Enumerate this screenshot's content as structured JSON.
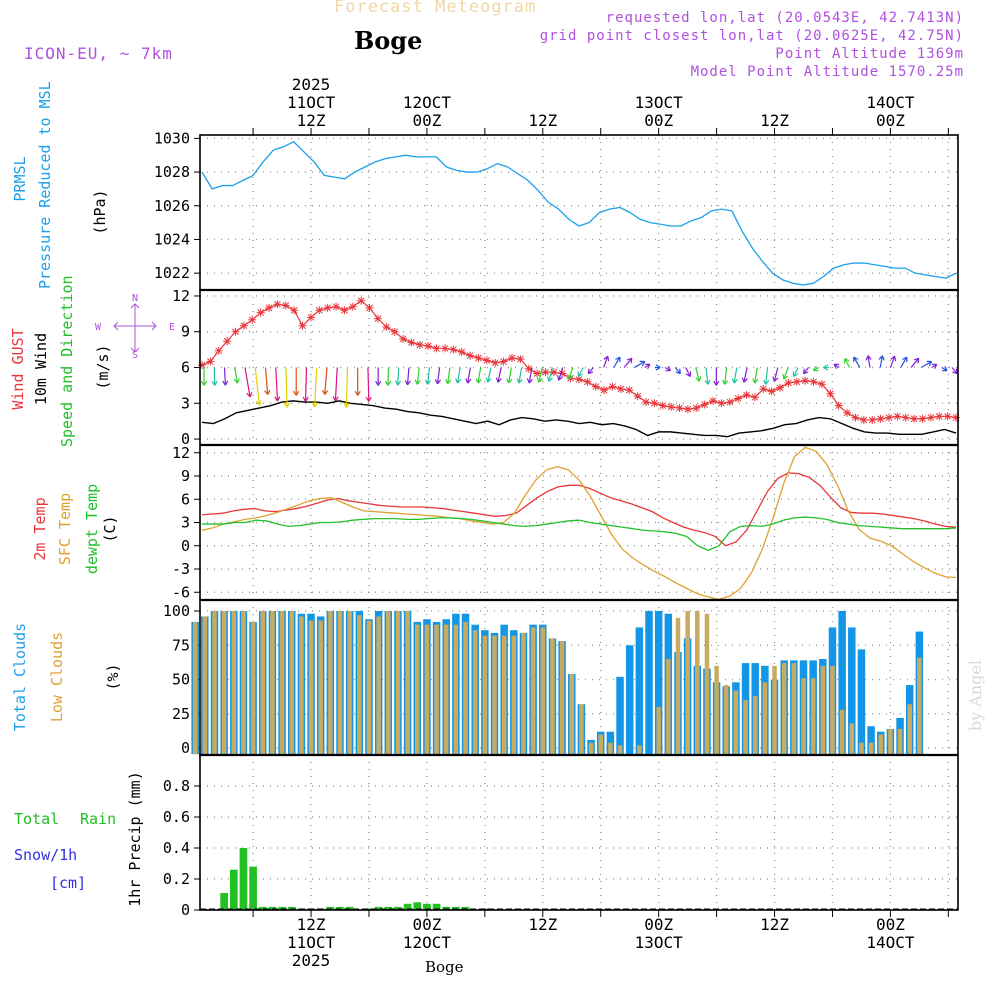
{
  "header": {
    "title": "Forecast Meteogram",
    "place": "Boge",
    "model": "ICON-EU, ~ 7km",
    "requested": "requested lon,lat (20.0543E, 42.7413N)",
    "gridpoint": "grid point closest lon,lat (20.0625E, 42.75N)",
    "point_altitude": "Point Altitude 1369m",
    "model_altitude": "Model Point Altitude 1570.25m",
    "credit": "by Angel",
    "footer_place": "Boge"
  },
  "colors": {
    "pressure": "#1aa0ea",
    "gust": "#e8363a",
    "wind": "#000000",
    "temp2m": "#e8363a",
    "sfc": "#e0a030",
    "dewpt": "#22c02a",
    "total_clouds": "#1496e6",
    "low_clouds": "#c8aa60",
    "rain": "#22c022",
    "snow": "#3030e0",
    "purple": "#b050e0"
  },
  "panel_labels": {
    "pressure": [
      "PRMSL",
      "Pressure Reduced to MSL",
      "(hPa)"
    ],
    "wind": [
      "Wind GUST",
      "10m Wind",
      "Speed and Direction",
      "(m/s)"
    ],
    "temp": [
      "2m Temp",
      "SFC Temp",
      "dewpt Temp",
      "(C)"
    ],
    "clouds": [
      "Total Clouds",
      "Low Clouds",
      "(%)"
    ],
    "precip": [
      "Total",
      "Rain",
      "Snow/1h",
      "[cm]",
      "1hr Precip (mm)"
    ],
    "compass": [
      "N",
      "E",
      "S",
      "W"
    ]
  },
  "chart_data": {
    "type": "line",
    "time_axis": {
      "start": "2025-10-11 00Z",
      "hours": 79,
      "step_h": 1,
      "top_ticks": [
        {
          "h": 12,
          "lines": [
            "2025",
            "11OCT",
            "12Z"
          ]
        },
        {
          "h": 24,
          "lines": [
            "12OCT",
            "00Z"
          ]
        },
        {
          "h": 36,
          "lines": [
            "12Z"
          ]
        },
        {
          "h": 48,
          "lines": [
            "13OCT",
            "00Z"
          ]
        },
        {
          "h": 60,
          "lines": [
            "12Z"
          ]
        },
        {
          "h": 72,
          "lines": [
            "14OCT",
            "00Z"
          ]
        }
      ],
      "bottom_ticks": [
        {
          "h": 12,
          "lines": [
            "12Z",
            "11OCT",
            "2025"
          ]
        },
        {
          "h": 24,
          "lines": [
            "00Z",
            "12OCT"
          ]
        },
        {
          "h": 36,
          "lines": [
            "12Z"
          ]
        },
        {
          "h": 48,
          "lines": [
            "00Z",
            "13OCT"
          ]
        },
        {
          "h": 60,
          "lines": [
            "12Z"
          ]
        },
        {
          "h": 72,
          "lines": [
            "00Z",
            "14OCT"
          ]
        }
      ]
    },
    "panels": [
      {
        "id": "pressure",
        "ylim": [
          1021,
          1030.2
        ],
        "yticks": [
          1022,
          1024,
          1026,
          1028,
          1030
        ],
        "series": [
          {
            "name": "PRMSL",
            "values": [
              1028,
              1027,
              1027.2,
              1027.2,
              1027.5,
              1027.8,
              1028.6,
              1029.3,
              1029.5,
              1029.8,
              1029.2,
              1028.6,
              1027.8,
              1027.7,
              1027.6,
              1028,
              1028.3,
              1028.6,
              1028.8,
              1028.9,
              1029,
              1028.9,
              1028.9,
              1028.9,
              1028.3,
              1028.1,
              1028,
              1028,
              1028.2,
              1028.5,
              1028.3,
              1027.9,
              1027.5,
              1026.9,
              1026.2,
              1025.8,
              1025.2,
              1024.8,
              1025,
              1025.6,
              1025.8,
              1025.9,
              1025.6,
              1025.2,
              1025,
              1024.9,
              1024.8,
              1024.8,
              1025.1,
              1025.3,
              1025.7,
              1025.8,
              1025.7,
              1024.5,
              1023.5,
              1022.7,
              1022,
              1021.6,
              1021.4,
              1021.3,
              1021.4,
              1021.8,
              1022.3,
              1022.5,
              1022.6,
              1022.6,
              1022.5,
              1022.4,
              1022.3,
              1022.3,
              1022,
              1021.9,
              1021.8,
              1021.7,
              1022
            ]
          }
        ]
      },
      {
        "id": "wind",
        "ylim": [
          -0.5,
          12.5
        ],
        "yticks": [
          0,
          3,
          6,
          9,
          12
        ],
        "series": [
          {
            "name": "Wind GUST",
            "values": [
              6.2,
              6.5,
              7.4,
              8.2,
              9,
              9.5,
              10,
              10.6,
              11,
              11.3,
              11.2,
              10.8,
              9.5,
              10.2,
              10.8,
              11,
              11.1,
              10.8,
              11.1,
              11.6,
              11,
              10.1,
              9.4,
              9,
              8.4,
              8.1,
              7.9,
              7.8,
              7.6,
              7.6,
              7.5,
              7.3,
              7,
              6.8,
              6.6,
              6.4,
              6.5,
              6.8,
              6.7,
              5.9,
              5.5,
              5.6,
              5.6,
              5.5,
              5.1,
              5,
              4.8,
              4.4,
              4.1,
              4.4,
              4.2,
              4.1,
              3.6,
              3.1,
              3,
              2.8,
              2.7,
              2.6,
              2.5,
              2.6,
              2.9,
              3.2,
              3,
              3.1,
              3.4,
              3.7,
              3.5,
              4.2,
              4,
              4.3,
              4.7,
              4.8,
              4.9,
              4.8,
              4.6,
              3.8,
              2.8,
              2.2,
              1.8,
              1.6,
              1.6,
              1.7,
              1.8,
              1.9,
              1.8,
              1.7,
              1.7,
              1.8,
              1.9,
              1.9,
              1.8
            ]
          },
          {
            "name": "10m Wind",
            "values": [
              1.4,
              1.3,
              1.7,
              2.2,
              2.4,
              2.6,
              2.8,
              3.1,
              3.2,
              3.1,
              3.1,
              3,
              3.2,
              3,
              2.9,
              2.8,
              2.6,
              2.5,
              2.3,
              2.2,
              2,
              1.9,
              1.7,
              1.5,
              1.3,
              1.5,
              1.2,
              1.6,
              1.8,
              1.7,
              1.5,
              1.6,
              1.5,
              1.3,
              1.4,
              1.2,
              1.3,
              1.1,
              0.8,
              0.3,
              0.6,
              0.6,
              0.5,
              0.4,
              0.3,
              0.3,
              0.2,
              0.5,
              0.6,
              0.7,
              0.9,
              1.2,
              1.3,
              1.6,
              1.8,
              1.7,
              1.3,
              0.9,
              0.6,
              0.5,
              0.5,
              0.4,
              0.4,
              0.4,
              0.6,
              0.8,
              0.5
            ]
          },
          {
            "name": "Direction arrows (deg toward)",
            "values": [
              180,
              175,
              170,
              150,
              150,
              160,
              165,
              170,
              175,
              180,
              185,
              190,
              195,
              190,
              185,
              180,
              175,
              180,
              185,
              190,
              195,
              200,
              200,
              205,
              205,
              210,
              210,
              210,
              215,
              215,
              210,
              210,
              210,
              215,
              220,
              225,
              230,
              240,
              250,
              20,
              30,
              40,
              60,
              80,
              90,
              100,
              110,
              120,
              140,
              160,
              180,
              200,
              210,
              215,
              210,
              200,
              220,
              230,
              240,
              250,
              260,
              270,
              280,
              300,
              330,
              350,
              10,
              20,
              30,
              40,
              60,
              80,
              100,
              110
            ]
          }
        ]
      },
      {
        "id": "temp",
        "ylim": [
          -7,
          13
        ],
        "yticks": [
          -6,
          -3,
          0,
          3,
          6,
          9,
          12
        ],
        "series": [
          {
            "name": "2m Temp",
            "values": [
              4,
              4.1,
              4.2,
              4.5,
              4.7,
              4.8,
              4.5,
              4.4,
              4.6,
              4.8,
              5.1,
              5.5,
              5.9,
              6.1,
              5.8,
              5.6,
              5.4,
              5.2,
              5.1,
              5,
              5,
              5,
              4.9,
              4.8,
              4.6,
              4.4,
              4.2,
              4,
              3.8,
              3.9,
              4.2,
              5.2,
              6.2,
              7,
              7.6,
              7.8,
              7.8,
              7.4,
              6.8,
              6.2,
              5.8,
              5.4,
              4.9,
              4.4,
              3.6,
              3,
              2.4,
              2,
              1.7,
              1.2,
              0,
              0.5,
              2,
              4.5,
              7,
              8.7,
              9.4,
              9.3,
              8.8,
              7.8,
              6.3,
              4.9,
              4.3,
              4.2,
              4.2,
              4.1,
              3.9,
              3.7,
              3.5,
              3.2,
              2.8,
              2.5,
              2.4
            ]
          },
          {
            "name": "SFC Temp",
            "values": [
              2,
              2.3,
              2.8,
              3.1,
              3.4,
              3.6,
              3.9,
              4.3,
              4.8,
              5.3,
              5.8,
              6.1,
              6.2,
              5.6,
              5,
              4.5,
              4.4,
              4.3,
              4.2,
              4.1,
              4,
              3.9,
              3.8,
              3.6,
              3.5,
              3.2,
              3,
              2.8,
              3,
              4.2,
              6.5,
              8.5,
              9.8,
              10.2,
              9.8,
              8.5,
              6.5,
              4,
              1.5,
              -0.4,
              -1.6,
              -2.5,
              -3.3,
              -4,
              -4.8,
              -5.5,
              -6.2,
              -6.6,
              -6.9,
              -6.5,
              -5.5,
              -3.5,
              -0.5,
              3.5,
              8,
              11.5,
              12.7,
              12.2,
              10.5,
              7.8,
              4.5,
              2.1,
              1,
              0.6,
              0,
              -1,
              -2,
              -2.8,
              -3.5,
              -4,
              -4.1
            ]
          },
          {
            "name": "dewpt Temp",
            "values": [
              2.8,
              2.8,
              2.8,
              3,
              3,
              3.3,
              3.2,
              2.8,
              2.5,
              2.6,
              2.8,
              3,
              3,
              3.1,
              3.3,
              3.4,
              3.5,
              3.5,
              3.5,
              3.4,
              3.4,
              3.5,
              3.6,
              3.6,
              3.5,
              3.4,
              3.2,
              3,
              2.8,
              2.6,
              2.5,
              2.6,
              2.8,
              3,
              3.2,
              3.3,
              3,
              2.8,
              2.6,
              2.4,
              2.2,
              2,
              1.9,
              1.8,
              1.6,
              1.2,
              0,
              -0.6,
              0,
              1.8,
              2.5,
              2.6,
              2.5,
              2.8,
              3.3,
              3.6,
              3.7,
              3.6,
              3.4,
              3,
              2.8,
              2.6,
              2.5,
              2.4,
              2.3,
              2.2,
              2.2,
              2.2,
              2.2,
              2.2,
              2.3
            ]
          }
        ]
      },
      {
        "id": "clouds",
        "ylim": [
          -5,
          108
        ],
        "yticks": [
          0,
          25,
          50,
          75,
          100
        ],
        "series": [
          {
            "name": "Total Clouds",
            "values": [
              92,
              96,
              100,
              100,
              100,
              100,
              92,
              100,
              100,
              100,
              100,
              98,
              98,
              96,
              100,
              100,
              100,
              100,
              94,
              100,
              100,
              100,
              100,
              92,
              94,
              92,
              94,
              98,
              98,
              90,
              86,
              84,
              90,
              86,
              84,
              90,
              90,
              80,
              78,
              54,
              32,
              6,
              12,
              12,
              52,
              75,
              88,
              100,
              100,
              98,
              70,
              80,
              60,
              58,
              48,
              45,
              48,
              62,
              62,
              60,
              50,
              64,
              64,
              64,
              64,
              65,
              88,
              100,
              88,
              72,
              16,
              12,
              14,
              22,
              46,
              85
            ]
          },
          {
            "name": "Low Clouds",
            "values": [
              92,
              96,
              100,
              100,
              100,
              100,
              92,
              100,
              100,
              100,
              100,
              96,
              93,
              93,
              100,
              100,
              100,
              97,
              93,
              96,
              100,
              100,
              100,
              90,
              90,
              90,
              90,
              90,
              92,
              86,
              82,
              82,
              82,
              82,
              84,
              88,
              88,
              80,
              78,
              54,
              32,
              4,
              10,
              4,
              2,
              0,
              2,
              0,
              30,
              65,
              95,
              100,
              100,
              98,
              60,
              46,
              42,
              35,
              38,
              48,
              60,
              62,
              62,
              51,
              51,
              60,
              60,
              28,
              18,
              4,
              4,
              10,
              14,
              14,
              32,
              66
            ]
          }
        ]
      },
      {
        "id": "precip",
        "ylim": [
          0,
          1.0
        ],
        "yticks": [
          0,
          0.2,
          0.4,
          0.6,
          0.8
        ],
        "series": [
          {
            "name": "Total Rain",
            "values": [
              0,
              0,
              0,
              0.11,
              0.26,
              0.4,
              0.28,
              0.02,
              0.02,
              0.02,
              0.02,
              0.01,
              0.01,
              0.01,
              0.02,
              0.02,
              0.02,
              0,
              0.01,
              0.02,
              0.02,
              0.02,
              0.04,
              0.05,
              0.04,
              0.04,
              0.02,
              0.02,
              0.02,
              0,
              0.01,
              0,
              0,
              0,
              0,
              0,
              0,
              0,
              0,
              0,
              0,
              0,
              0,
              0,
              0,
              0,
              0,
              0,
              0,
              0,
              0,
              0,
              0,
              0,
              0,
              0,
              0,
              0,
              0,
              0,
              0,
              0,
              0,
              0,
              0,
              0,
              0,
              0,
              0,
              0,
              0,
              0,
              0,
              0,
              0
            ]
          }
        ]
      }
    ]
  }
}
